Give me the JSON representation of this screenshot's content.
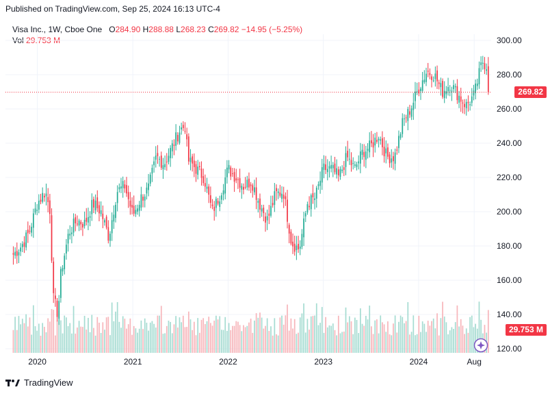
{
  "header": {
    "published": "Published on TradingView.com, Sep 25, 2024 16:13 UTC-4"
  },
  "legend": {
    "symbol": "Visa Inc., 1W, Cboe One",
    "o_label": "O",
    "o": "284.90",
    "h_label": "H",
    "h": "288.88",
    "l_label": "L",
    "l": "268.23",
    "c_label": "C",
    "c": "269.82",
    "change": "−14.95 (−5.25%)",
    "vol_label": "Vol",
    "vol": "29.753 M"
  },
  "tags": {
    "price": "269.82",
    "volume": "29.753 M"
  },
  "footer": {
    "brand": "TradingView"
  },
  "colors": {
    "up": "#22ab94",
    "down": "#f23645",
    "up_vol": "#a6dcd2",
    "down_vol": "#f7b6bb",
    "grid": "#f0f3fa"
  },
  "chart_data": {
    "type": "candlestick",
    "title": "Visa Inc., 1W, Cboe One",
    "y_ticks": [
      "300.00",
      "280.00",
      "260.00",
      "240.00",
      "220.00",
      "200.00",
      "180.00",
      "160.00",
      "140.00",
      "120.00"
    ],
    "x_ticks": [
      "2020",
      "2021",
      "2022",
      "2023",
      "2024",
      "Aug"
    ],
    "ylim": [
      120,
      300
    ],
    "last_price": 269.82,
    "last_volume": "29.753 M",
    "weekly_close_path": [
      {
        "date": "2019-10",
        "close": 175
      },
      {
        "date": "2019-11",
        "close": 180
      },
      {
        "date": "2019-12",
        "close": 188
      },
      {
        "date": "2020-01",
        "close": 205
      },
      {
        "date": "2020-02",
        "close": 212
      },
      {
        "date": "2020-02-20",
        "close": 200
      },
      {
        "date": "2020-03",
        "close": 150
      },
      {
        "date": "2020-03-20",
        "close": 140
      },
      {
        "date": "2020-04",
        "close": 165
      },
      {
        "date": "2020-05",
        "close": 188
      },
      {
        "date": "2020-06",
        "close": 195
      },
      {
        "date": "2020-07",
        "close": 193
      },
      {
        "date": "2020-08",
        "close": 205
      },
      {
        "date": "2020-09",
        "close": 200
      },
      {
        "date": "2020-10",
        "close": 185
      },
      {
        "date": "2020-11",
        "close": 212
      },
      {
        "date": "2020-12",
        "close": 215
      },
      {
        "date": "2021-01",
        "close": 198
      },
      {
        "date": "2021-02",
        "close": 208
      },
      {
        "date": "2021-03",
        "close": 213
      },
      {
        "date": "2021-04",
        "close": 232
      },
      {
        "date": "2021-05",
        "close": 228
      },
      {
        "date": "2021-06",
        "close": 238
      },
      {
        "date": "2021-07",
        "close": 248
      },
      {
        "date": "2021-07-20",
        "close": 250
      },
      {
        "date": "2021-08",
        "close": 230
      },
      {
        "date": "2021-09",
        "close": 225
      },
      {
        "date": "2021-10",
        "close": 220
      },
      {
        "date": "2021-11",
        "close": 200
      },
      {
        "date": "2021-12",
        "close": 210
      },
      {
        "date": "2022-01",
        "close": 225
      },
      {
        "date": "2022-02",
        "close": 220
      },
      {
        "date": "2022-03",
        "close": 215
      },
      {
        "date": "2022-04",
        "close": 218
      },
      {
        "date": "2022-05",
        "close": 205
      },
      {
        "date": "2022-06",
        "close": 195
      },
      {
        "date": "2022-07",
        "close": 210
      },
      {
        "date": "2022-08",
        "close": 212
      },
      {
        "date": "2022-09",
        "close": 182
      },
      {
        "date": "2022-10",
        "close": 178
      },
      {
        "date": "2022-11",
        "close": 205
      },
      {
        "date": "2022-12",
        "close": 208
      },
      {
        "date": "2023-01",
        "close": 225
      },
      {
        "date": "2023-02",
        "close": 225
      },
      {
        "date": "2023-03",
        "close": 220
      },
      {
        "date": "2023-04",
        "close": 232
      },
      {
        "date": "2023-05",
        "close": 225
      },
      {
        "date": "2023-06",
        "close": 235
      },
      {
        "date": "2023-07",
        "close": 238
      },
      {
        "date": "2023-08",
        "close": 245
      },
      {
        "date": "2023-09",
        "close": 232
      },
      {
        "date": "2023-10",
        "close": 232
      },
      {
        "date": "2023-11",
        "close": 252
      },
      {
        "date": "2023-12",
        "close": 260
      },
      {
        "date": "2024-01",
        "close": 272
      },
      {
        "date": "2024-02",
        "close": 282
      },
      {
        "date": "2024-03",
        "close": 280
      },
      {
        "date": "2024-04",
        "close": 270
      },
      {
        "date": "2024-05",
        "close": 275
      },
      {
        "date": "2024-06",
        "close": 268
      },
      {
        "date": "2024-07",
        "close": 262
      },
      {
        "date": "2024-08",
        "close": 268
      },
      {
        "date": "2024-09",
        "close": 288
      },
      {
        "date": "2024-09-20",
        "close": 284.9
      },
      {
        "date": "2024-09-25",
        "close": 269.82
      }
    ]
  }
}
